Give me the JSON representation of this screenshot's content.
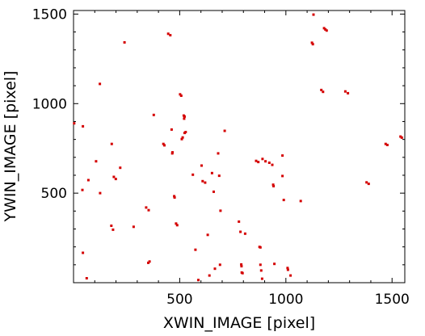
{
  "chart_data": {
    "type": "scatter",
    "title": "",
    "xlabel": "XWIN_IMAGE [pixel]",
    "ylabel": "YWIN_IMAGE [pixel]",
    "xlim": [
      0,
      1560
    ],
    "ylim": [
      0,
      1520
    ],
    "xticks": [
      500,
      1000,
      1500
    ],
    "xtick_labels": [
      "500",
      "1000",
      "1500"
    ],
    "yticks": [
      500,
      1000,
      1500
    ],
    "ytick_labels": [
      "500",
      "1000",
      "1500"
    ],
    "x_minor_step": 100,
    "y_minor_step": 100,
    "grid": false,
    "marker_color": "#d40000",
    "points": [
      [
        3,
        890
      ],
      [
        44,
        873
      ],
      [
        106,
        678
      ],
      [
        124,
        1110
      ],
      [
        70,
        573
      ],
      [
        42,
        518
      ],
      [
        125,
        500
      ],
      [
        44,
        167
      ],
      [
        62,
        25
      ],
      [
        180,
        775
      ],
      [
        190,
        591
      ],
      [
        199,
        579
      ],
      [
        220,
        642
      ],
      [
        178,
        318
      ],
      [
        186,
        296
      ],
      [
        240,
        1342
      ],
      [
        283,
        312
      ],
      [
        342,
        420
      ],
      [
        354,
        405
      ],
      [
        358,
        118
      ],
      [
        352,
        111
      ],
      [
        378,
        937
      ],
      [
        423,
        775
      ],
      [
        428,
        767
      ],
      [
        446,
        1390
      ],
      [
        456,
        1382
      ],
      [
        462,
        855
      ],
      [
        466,
        728
      ],
      [
        465,
        722
      ],
      [
        474,
        483
      ],
      [
        476,
        476
      ],
      [
        483,
        330
      ],
      [
        488,
        321
      ],
      [
        502,
        1052
      ],
      [
        507,
        1044
      ],
      [
        510,
        802
      ],
      [
        514,
        811
      ],
      [
        519,
        933
      ],
      [
        523,
        928
      ],
      [
        521,
        916
      ],
      [
        523,
        836
      ],
      [
        528,
        841
      ],
      [
        562,
        603
      ],
      [
        574,
        184
      ],
      [
        588,
        15
      ],
      [
        603,
        654
      ],
      [
        608,
        567
      ],
      [
        620,
        559
      ],
      [
        632,
        267
      ],
      [
        640,
        40
      ],
      [
        652,
        612
      ],
      [
        660,
        508
      ],
      [
        666,
        78
      ],
      [
        681,
        722
      ],
      [
        686,
        597
      ],
      [
        690,
        100
      ],
      [
        692,
        402
      ],
      [
        712,
        848
      ],
      [
        779,
        341
      ],
      [
        786,
        284
      ],
      [
        790,
        102
      ],
      [
        791,
        92
      ],
      [
        792,
        57
      ],
      [
        796,
        53
      ],
      [
        808,
        274
      ],
      [
        860,
        680
      ],
      [
        870,
        674
      ],
      [
        876,
        200
      ],
      [
        880,
        197
      ],
      [
        880,
        100
      ],
      [
        884,
        68
      ],
      [
        888,
        22
      ],
      [
        890,
        691
      ],
      [
        904,
        678
      ],
      [
        922,
        670
      ],
      [
        936,
        658
      ],
      [
        940,
        547
      ],
      [
        942,
        539
      ],
      [
        946,
        105
      ],
      [
        984,
        710
      ],
      [
        984,
        596
      ],
      [
        990,
        462
      ],
      [
        1008,
        82
      ],
      [
        1010,
        72
      ],
      [
        1022,
        40
      ],
      [
        1070,
        456
      ],
      [
        1123,
        1340
      ],
      [
        1127,
        1332
      ],
      [
        1130,
        1497
      ],
      [
        1167,
        1076
      ],
      [
        1175,
        1066
      ],
      [
        1180,
        1421
      ],
      [
        1186,
        1414
      ],
      [
        1192,
        1408
      ],
      [
        1280,
        1068
      ],
      [
        1292,
        1058
      ],
      [
        1380,
        560
      ],
      [
        1390,
        552
      ],
      [
        1470,
        775
      ],
      [
        1478,
        769
      ],
      [
        1540,
        816
      ],
      [
        1546,
        810
      ]
    ]
  }
}
